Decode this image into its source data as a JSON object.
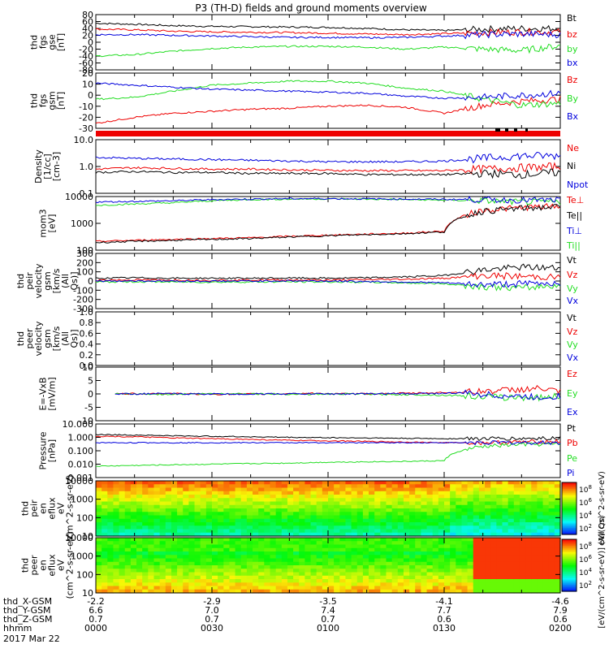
{
  "title": "P3 (TH-D) fields and ground moments overview",
  "colors": {
    "black": "#000000",
    "red": "#ee0000",
    "green": "#22dd22",
    "blue": "#0000dd"
  },
  "footer": {
    "rows": [
      {
        "label": "thd_X-GSM",
        "values": [
          "-2.2",
          "-2.9",
          "-3.5",
          "-4.1",
          "-4.6"
        ]
      },
      {
        "label": "thd_Y-GSM",
        "values": [
          "6.6",
          "7.0",
          "7.4",
          "7.7",
          "7.9"
        ]
      },
      {
        "label": "thd_Z-GSM",
        "values": [
          "0.7",
          "0.7",
          "0.7",
          "0.6",
          "0.6"
        ]
      },
      {
        "label": "hhmm",
        "values": [
          "0000",
          "0030",
          "0100",
          "0130",
          "0200"
        ]
      }
    ],
    "date": "2017 Mar 22"
  },
  "time_axis": {
    "start": "00:00",
    "end": "02:00",
    "major_ticks": [
      "0000",
      "0030",
      "0100",
      "0130",
      "0200"
    ]
  },
  "colorbar": {
    "label": "[eV/(cm^2-s-sr-eV)] (All Qs)",
    "label_upper": "eV/(cm^2-s-sr-eV)",
    "label_lower": "[eV/(cm^2-s-sr-eV)] (All Qs)",
    "ticks_upper": [
      "10^8",
      "10^6",
      "10^4",
      "10^2"
    ],
    "ticks_lower": [
      "10^8",
      "10^6",
      "10^4",
      "10^2"
    ]
  },
  "chart_data": [
    {
      "type": "line",
      "ylabel": "thd fgs gse [nT]",
      "ylim": [
        -80,
        80
      ],
      "ticks": [
        "80",
        "60",
        "40",
        "20",
        "0",
        "-20",
        "-40",
        "-60",
        "-80"
      ],
      "legend": [
        "Bt",
        "bz",
        "by",
        "bx"
      ],
      "series": [
        {
          "name": "Bt",
          "color": "black",
          "x": [
            0,
            10,
            20,
            30,
            40,
            50,
            60,
            70,
            80,
            90,
            100,
            110,
            120
          ],
          "values": [
            55,
            52,
            48,
            46,
            45,
            44,
            43,
            40,
            36,
            34,
            38,
            40,
            40
          ]
        },
        {
          "name": "bz",
          "color": "red",
          "x": [
            0,
            10,
            20,
            30,
            40,
            50,
            60,
            70,
            80,
            90,
            100,
            110,
            120
          ],
          "values": [
            38,
            36,
            32,
            30,
            29,
            28,
            26,
            24,
            22,
            25,
            28,
            30,
            30
          ]
        },
        {
          "name": "by",
          "color": "green",
          "x": [
            0,
            10,
            20,
            30,
            40,
            50,
            60,
            70,
            80,
            90,
            100,
            110,
            120
          ],
          "values": [
            -40,
            -36,
            -26,
            -18,
            -14,
            -12,
            -12,
            -14,
            -20,
            -14,
            -20,
            -24,
            -10
          ]
        },
        {
          "name": "bx",
          "color": "blue",
          "x": [
            0,
            10,
            20,
            30,
            40,
            50,
            60,
            70,
            80,
            90,
            100,
            110,
            120
          ],
          "values": [
            22,
            22,
            20,
            18,
            16,
            14,
            14,
            13,
            14,
            18,
            22,
            24,
            22
          ]
        }
      ]
    },
    {
      "type": "line",
      "ylabel": "thd fgs gsm [nT]",
      "ylim": [
        -35,
        20
      ],
      "ticks": [
        "20",
        "10",
        "0",
        "-10",
        "-20",
        "-30"
      ],
      "legend": [
        "Bz",
        "By",
        "Bx"
      ],
      "series": [
        {
          "name": "Bz",
          "color": "red",
          "x": [
            0,
            10,
            20,
            30,
            40,
            50,
            60,
            70,
            80,
            90,
            100,
            110,
            120
          ],
          "values": [
            -30,
            -24,
            -20,
            -18,
            -16,
            -15,
            -13,
            -12,
            -14,
            -20,
            -12,
            -8,
            -6
          ]
        },
        {
          "name": "By",
          "color": "green",
          "x": [
            0,
            10,
            20,
            30,
            40,
            50,
            60,
            70,
            80,
            90,
            100,
            110,
            120
          ],
          "values": [
            -6,
            -4,
            2,
            8,
            10,
            12,
            12,
            10,
            5,
            2,
            -6,
            -12,
            -10
          ]
        },
        {
          "name": "Bx",
          "color": "blue",
          "x": [
            0,
            10,
            20,
            30,
            40,
            50,
            60,
            70,
            80,
            90,
            100,
            110,
            120
          ],
          "values": [
            10,
            8,
            6,
            4,
            3,
            2,
            1,
            0,
            -3,
            -5,
            -4,
            -2,
            0
          ]
        }
      ]
    },
    {
      "type": "line",
      "ylabel": "Density [1/cc] [cm-3]",
      "yscale": "log",
      "ylim": [
        0.1,
        10
      ],
      "ticks": [
        "10.0",
        "1.0",
        "0.1"
      ],
      "legend": [
        "Ne",
        "Ni",
        "Npot"
      ],
      "series": [
        {
          "name": "Ne",
          "color": "red",
          "x": [
            0,
            10,
            20,
            30,
            40,
            50,
            60,
            70,
            80,
            90,
            100,
            110,
            120
          ],
          "values": [
            0.8,
            0.9,
            0.85,
            0.8,
            0.8,
            0.75,
            0.72,
            0.7,
            0.7,
            0.7,
            0.8,
            0.9,
            1.0
          ]
        },
        {
          "name": "Ni",
          "color": "black",
          "x": [
            0,
            10,
            20,
            30,
            40,
            50,
            60,
            70,
            80,
            90,
            100,
            110,
            120
          ],
          "values": [
            0.6,
            0.65,
            0.6,
            0.6,
            0.55,
            0.55,
            0.55,
            0.5,
            0.5,
            0.5,
            0.55,
            0.5,
            0.6
          ]
        },
        {
          "name": "Npot",
          "color": "blue",
          "x": [
            0,
            10,
            20,
            30,
            40,
            50,
            60,
            70,
            80,
            90,
            100,
            110,
            120
          ],
          "values": [
            2.2,
            2.0,
            1.9,
            1.8,
            1.7,
            1.6,
            1.5,
            1.5,
            1.5,
            1.6,
            2.0,
            2.5,
            2.5
          ]
        }
      ]
    },
    {
      "type": "line",
      "ylabel": "mom3 [eV]",
      "yscale": "log",
      "ylim": [
        30,
        12000
      ],
      "ticks": [
        "10000",
        "1000",
        "100"
      ],
      "legend": [
        "Te⊥",
        "Te||",
        "Ti⊥",
        "Ti||"
      ],
      "series": [
        {
          "name": "Ti||",
          "color": "green",
          "x": [
            0,
            10,
            20,
            30,
            40,
            50,
            60,
            70,
            80,
            90,
            100,
            110,
            120
          ],
          "values": [
            4500,
            5200,
            6000,
            7500,
            8500,
            9000,
            9200,
            9000,
            8500,
            8000,
            7500,
            6500,
            6500
          ]
        },
        {
          "name": "Ti⊥",
          "color": "blue",
          "x": [
            0,
            10,
            20,
            30,
            40,
            50,
            60,
            70,
            80,
            90,
            100,
            110,
            120
          ],
          "values": [
            6500,
            7000,
            7500,
            8500,
            9000,
            9500,
            9500,
            9300,
            9000,
            8800,
            8500,
            8000,
            8000
          ]
        },
        {
          "name": "Te⊥",
          "color": "red",
          "x": [
            0,
            10,
            20,
            30,
            40,
            50,
            60,
            70,
            80,
            90,
            100,
            110,
            120
          ],
          "values": [
            80,
            90,
            100,
            110,
            120,
            140,
            160,
            180,
            200,
            250,
            2500,
            3500,
            4000
          ]
        },
        {
          "name": "Te||",
          "color": "black",
          "x": [
            0,
            10,
            20,
            30,
            40,
            50,
            60,
            70,
            80,
            90,
            100,
            110,
            120
          ],
          "values": [
            70,
            80,
            90,
            100,
            110,
            130,
            150,
            170,
            190,
            230,
            2300,
            3200,
            3800
          ]
        }
      ]
    },
    {
      "type": "line",
      "ylabel": "thd peir velocity gsm [km/s (All Qs)]",
      "ylim": [
        -300,
        300
      ],
      "ticks": [
        "300",
        "200",
        "100",
        "0",
        "-100",
        "-200",
        "-300"
      ],
      "legend": [
        "Vt",
        "Vz",
        "Vy",
        "Vx"
      ],
      "series": [
        {
          "name": "Vt",
          "color": "black",
          "x": [
            0,
            10,
            20,
            30,
            40,
            50,
            60,
            70,
            80,
            90,
            100,
            110,
            120
          ],
          "values": [
            30,
            35,
            30,
            30,
            30,
            32,
            30,
            35,
            45,
            60,
            120,
            150,
            140
          ]
        },
        {
          "name": "Vz",
          "color": "red",
          "x": [
            0,
            10,
            20,
            30,
            40,
            50,
            60,
            70,
            80,
            90,
            100,
            110,
            120
          ],
          "values": [
            10,
            12,
            10,
            8,
            10,
            12,
            10,
            15,
            20,
            30,
            60,
            50,
            40
          ]
        },
        {
          "name": "Vy",
          "color": "green",
          "x": [
            0,
            10,
            20,
            30,
            40,
            50,
            60,
            70,
            80,
            90,
            100,
            110,
            120
          ],
          "values": [
            -10,
            -8,
            -10,
            -12,
            -10,
            -8,
            -10,
            -12,
            -20,
            -30,
            -60,
            -80,
            -40
          ]
        },
        {
          "name": "Vx",
          "color": "blue",
          "x": [
            0,
            10,
            20,
            30,
            40,
            50,
            60,
            70,
            80,
            90,
            100,
            110,
            120
          ],
          "values": [
            0,
            2,
            0,
            -2,
            0,
            2,
            0,
            -5,
            -10,
            -20,
            -40,
            -30,
            -20
          ]
        }
      ]
    },
    {
      "type": "line",
      "ylabel": "thd peer velocity gsm [km/s (All Qs)]",
      "ylim": [
        0,
        1
      ],
      "ticks": [
        "1.0",
        "0.8",
        "0.6",
        "0.4",
        "0.2",
        "0.0"
      ],
      "legend": [
        "Vt",
        "Vz",
        "Vy",
        "Vx"
      ],
      "series": []
    },
    {
      "type": "line",
      "ylabel": "E=-VxB [mV/m]",
      "ylim": [
        -15,
        15
      ],
      "ticks": [
        "10",
        "5",
        "0",
        "-5",
        "-10"
      ],
      "legend": [
        "Ez",
        "Ey",
        "Ex"
      ],
      "series": [
        {
          "name": "Ez",
          "color": "red",
          "x": [
            5,
            15,
            25,
            35,
            45,
            55,
            65,
            75,
            85,
            95,
            105,
            115,
            120
          ],
          "values": [
            0,
            0.2,
            0,
            -0.2,
            0,
            0.3,
            0,
            0.2,
            0.5,
            1,
            2,
            3,
            1
          ]
        },
        {
          "name": "Ey",
          "color": "green",
          "x": [
            5,
            15,
            25,
            35,
            45,
            55,
            65,
            75,
            85,
            95,
            105,
            115,
            120
          ],
          "values": [
            0,
            -0.2,
            0,
            0.2,
            0,
            -0.2,
            0,
            -0.3,
            -0.5,
            -1,
            -2,
            -2,
            -1
          ]
        },
        {
          "name": "Ex",
          "color": "blue",
          "x": [
            5,
            15,
            25,
            35,
            45,
            55,
            65,
            75,
            85,
            95,
            105,
            115,
            120
          ],
          "values": [
            0,
            0.1,
            0,
            -0.1,
            0,
            0.1,
            0,
            0.1,
            0.2,
            0.5,
            -1,
            -2,
            -1
          ]
        }
      ]
    },
    {
      "type": "line",
      "ylabel": "Pressure [nPa]",
      "yscale": "log",
      "ylim": [
        0.001,
        10
      ],
      "ticks": [
        "10.000",
        "1.000",
        "0.100",
        "0.010",
        "0.001"
      ],
      "legend": [
        "Pt",
        "Pb",
        "Pe",
        "Pi"
      ],
      "series": [
        {
          "name": "Pt",
          "color": "black",
          "x": [
            0,
            10,
            20,
            30,
            40,
            50,
            60,
            70,
            80,
            90,
            100,
            110,
            120
          ],
          "values": [
            1.6,
            1.5,
            1.3,
            1.2,
            1.1,
            1.0,
            0.95,
            0.9,
            0.85,
            0.8,
            0.8,
            0.8,
            0.9
          ]
        },
        {
          "name": "Pb",
          "color": "red",
          "x": [
            0,
            10,
            20,
            30,
            40,
            50,
            60,
            70,
            80,
            90,
            100,
            110,
            120
          ],
          "values": [
            1.2,
            1.1,
            0.9,
            0.8,
            0.7,
            0.6,
            0.55,
            0.5,
            0.45,
            0.4,
            0.4,
            0.45,
            0.5
          ]
        },
        {
          "name": "Pe",
          "color": "green",
          "x": [
            0,
            10,
            20,
            30,
            40,
            50,
            60,
            70,
            80,
            90,
            100,
            110,
            120
          ],
          "values": [
            0.007,
            0.008,
            0.009,
            0.01,
            0.011,
            0.012,
            0.014,
            0.015,
            0.016,
            0.018,
            0.2,
            0.3,
            0.3
          ]
        },
        {
          "name": "Pi",
          "color": "blue",
          "x": [
            0,
            10,
            20,
            30,
            40,
            50,
            60,
            70,
            80,
            90,
            100,
            110,
            120
          ],
          "values": [
            0.4,
            0.4,
            0.4,
            0.4,
            0.4,
            0.4,
            0.4,
            0.4,
            0.4,
            0.4,
            0.4,
            0.4,
            0.4
          ]
        }
      ]
    },
    {
      "type": "heatmap",
      "ylabel": "thd peir en eflux eV (cm^2-s-sr-eV)",
      "yscale": "log",
      "ylim": [
        7,
        30000
      ],
      "ticks": [
        "10000",
        "1000",
        "100",
        "10"
      ]
    },
    {
      "type": "heatmap",
      "ylabel": "thd peer en eflux eV (cm^2-s-sr-eV)",
      "yscale": "log",
      "ylim": [
        7,
        30000
      ],
      "ticks": [
        "10000",
        "1000",
        "100",
        "10"
      ]
    }
  ]
}
